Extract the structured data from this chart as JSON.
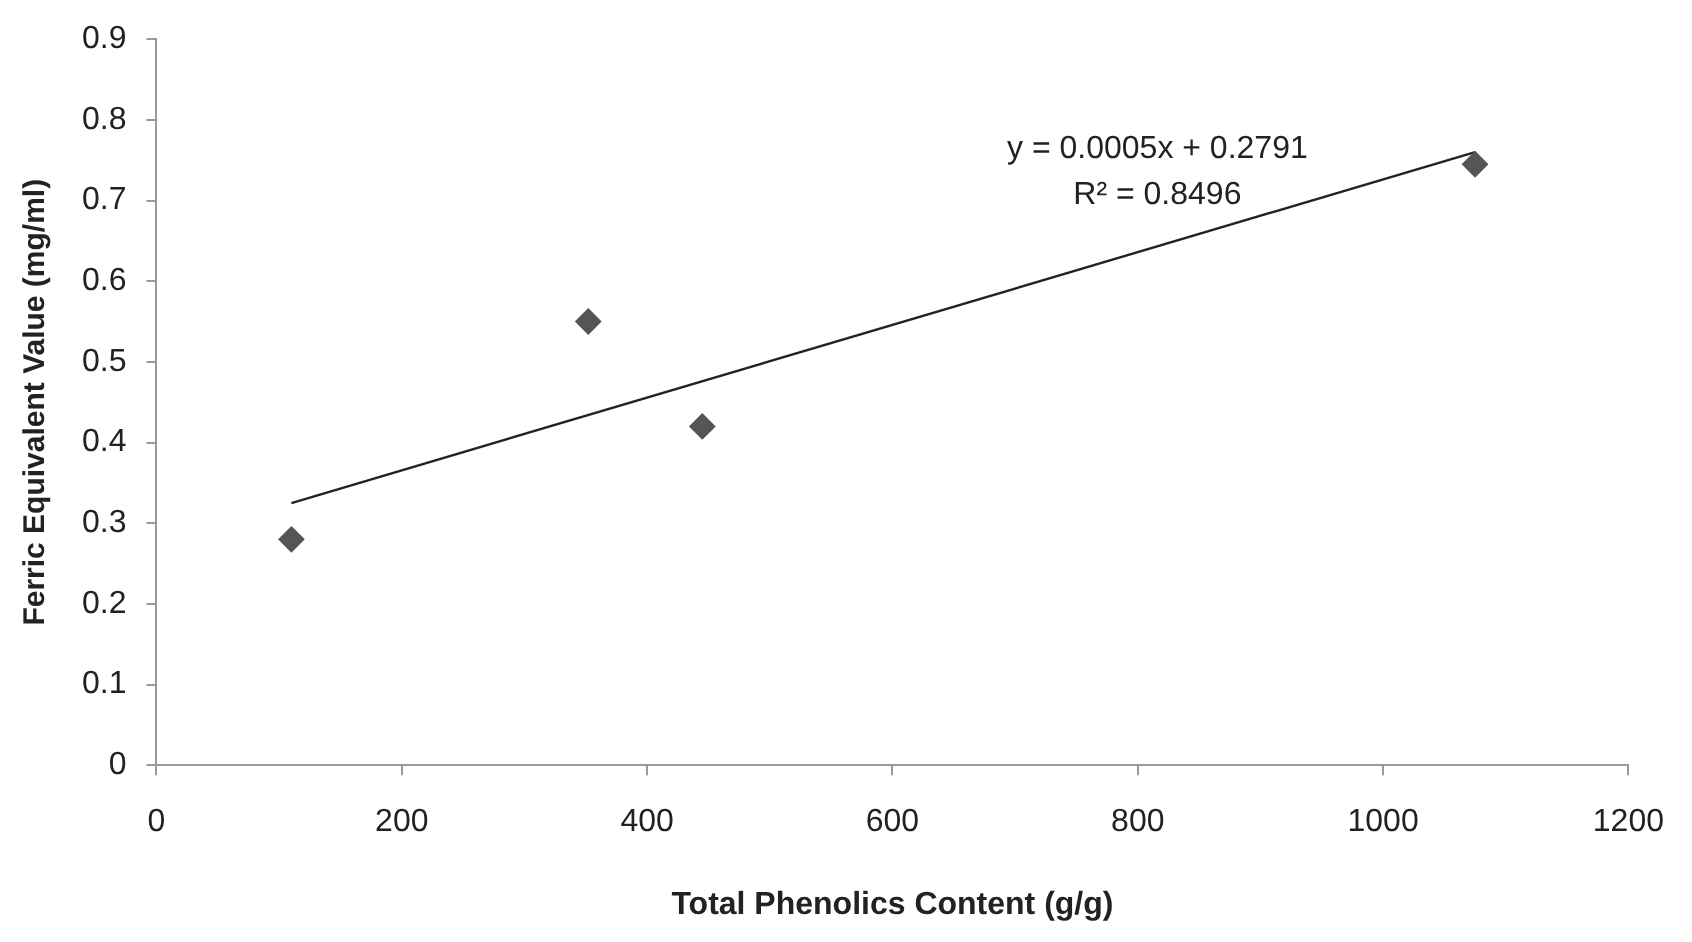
{
  "chart_data": {
    "type": "scatter",
    "xlabel": "Total Phenolics Content (g/g)",
    "ylabel": "Ferric Equivalent Value (mg/ml)",
    "xlim": [
      0,
      1200
    ],
    "xticks": [
      0,
      200,
      400,
      600,
      800,
      1000,
      1200
    ],
    "ylim": [
      0,
      0.9
    ],
    "yticks": [
      0,
      0.1,
      0.2,
      0.3,
      0.4,
      0.5,
      0.6,
      0.7,
      0.8,
      0.9
    ],
    "grid": false,
    "legend": false,
    "marker": "diamond",
    "series": [
      {
        "color": "#555555",
        "x": [
          110,
          352,
          445,
          1075
        ],
        "values": [
          0.28,
          0.55,
          0.42,
          0.745
        ]
      },
      {
        "type": "line",
        "color": "#222222",
        "x": [
          110,
          1075
        ],
        "values": [
          0.325,
          0.76
        ],
        "marker": "none",
        "line_style": "solid"
      }
    ],
    "annotations": [
      "y = 0.0005x + 0.2791",
      "R² = 0.8496"
    ]
  }
}
